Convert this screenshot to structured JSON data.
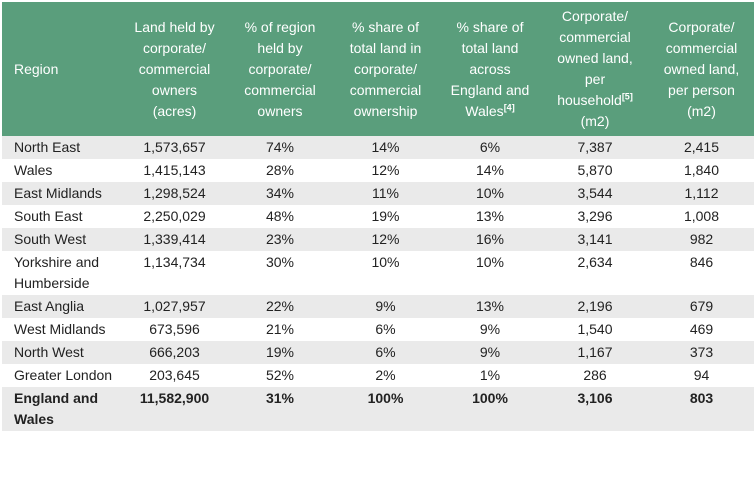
{
  "header": {
    "region": "Region",
    "acres_lines": [
      "Land held by",
      "corporate/",
      "commercial",
      "owners",
      "(acres)"
    ],
    "pct_region_lines": [
      "% of region",
      "held by",
      "corporate/",
      "commercial",
      "owners"
    ],
    "pct_share_lines": [
      "% share of",
      "total land in",
      "corporate/",
      "commercial",
      "ownership"
    ],
    "pct_ew_lines": [
      "% share of",
      "total land",
      "across",
      "England and",
      "Wales"
    ],
    "pct_ew_note": "[4]",
    "per_household_lines": [
      "Corporate/",
      "commercial",
      "owned land,",
      "per",
      "household"
    ],
    "per_household_note": "[5]",
    "per_household_unit": "(m2)",
    "per_person_lines": [
      "Corporate/",
      "commercial",
      "owned land,",
      "per person",
      "(m2)"
    ]
  },
  "rows": [
    {
      "region": "North East",
      "acres": "1,573,657",
      "pct_region": "74%",
      "pct_share": "14%",
      "pct_ew": "6%",
      "per_household": "7,387",
      "per_person": "2,415"
    },
    {
      "region": "Wales",
      "acres": "1,415,143",
      "pct_region": "28%",
      "pct_share": "12%",
      "pct_ew": "14%",
      "per_household": "5,870",
      "per_person": "1,840"
    },
    {
      "region": "East Midlands",
      "acres": "1,298,524",
      "pct_region": "34%",
      "pct_share": "11%",
      "pct_ew": "10%",
      "per_household": "3,544",
      "per_person": "1,112"
    },
    {
      "region": "South East",
      "acres": "2,250,029",
      "pct_region": "48%",
      "pct_share": "19%",
      "pct_ew": "13%",
      "per_household": "3,296",
      "per_person": "1,008"
    },
    {
      "region": "South West",
      "acres": "1,339,414",
      "pct_region": "23%",
      "pct_share": "12%",
      "pct_ew": "16%",
      "per_household": "3,141",
      "per_person": "982"
    },
    {
      "region": "Yorkshire and Humberside",
      "acres": "1,134,734",
      "pct_region": "30%",
      "pct_share": "10%",
      "pct_ew": "10%",
      "per_household": "2,634",
      "per_person": "846"
    },
    {
      "region": "East Anglia",
      "acres": "1,027,957",
      "pct_region": "22%",
      "pct_share": "9%",
      "pct_ew": "13%",
      "per_household": "2,196",
      "per_person": "679"
    },
    {
      "region": "West Midlands",
      "acres": "673,596",
      "pct_region": "21%",
      "pct_share": "6%",
      "pct_ew": "9%",
      "per_household": "1,540",
      "per_person": "469"
    },
    {
      "region": "North West",
      "acres": "666,203",
      "pct_region": "19%",
      "pct_share": "6%",
      "pct_ew": "9%",
      "per_household": "1,167",
      "per_person": "373"
    },
    {
      "region": "Greater London",
      "acres": "203,645",
      "pct_region": "52%",
      "pct_share": "2%",
      "pct_ew": "1%",
      "per_household": "286",
      "per_person": "94"
    }
  ],
  "total": {
    "region": "England and Wales",
    "acres": "11,582,900",
    "pct_region": "31%",
    "pct_share": "100%",
    "pct_ew": "100%",
    "per_household": "3,106",
    "per_person": "803"
  }
}
